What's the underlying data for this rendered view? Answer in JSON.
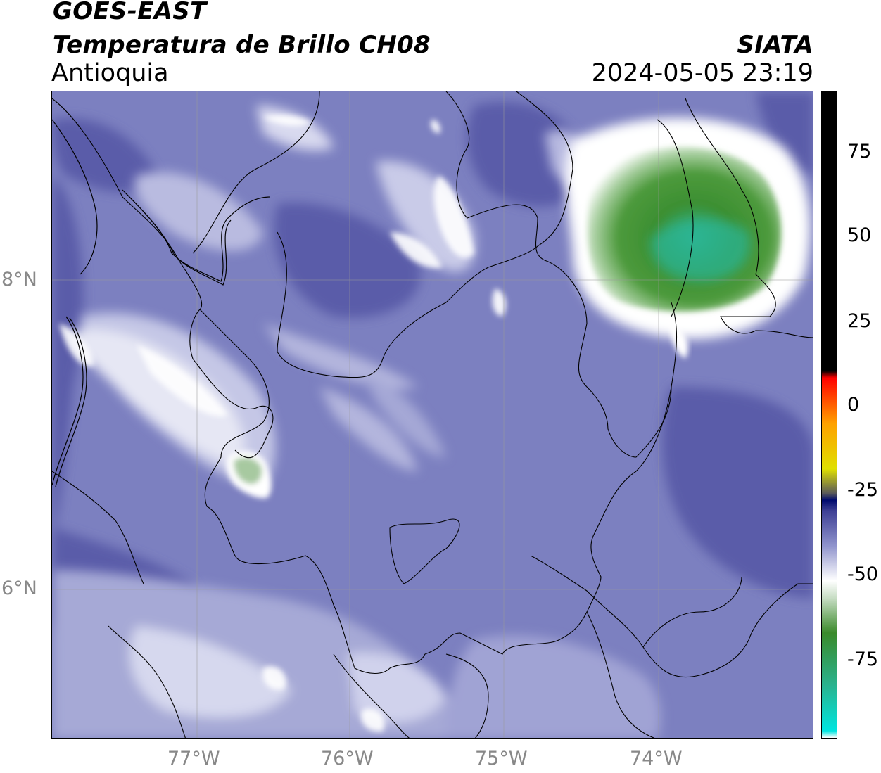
{
  "header": {
    "satellite": "GOES-EAST",
    "product": "Temperatura de Brillo CH08",
    "region": "Antioquia",
    "agency": "SIATA",
    "timestamp": "2024-05-05 23:19"
  },
  "map": {
    "lon_ticks": [
      "77°W",
      "76°W",
      "75°W",
      "74°W"
    ],
    "lat_ticks": [
      "8°N",
      "6°N"
    ],
    "lon_range": [
      -77.94,
      -73.03
    ],
    "lat_range": [
      5.0,
      9.2
    ],
    "colormap_stops": [
      {
        "value": -95,
        "color": "#ffffff"
      },
      {
        "value": -93,
        "color": "#00e5e0"
      },
      {
        "value": -80,
        "color": "#2ab38f"
      },
      {
        "value": -65,
        "color": "#3a8a2a"
      },
      {
        "value": -55,
        "color": "#c7ddc4"
      },
      {
        "value": -50,
        "color": "#ffffff"
      },
      {
        "value": -40,
        "color": "#8f93cc"
      },
      {
        "value": -30,
        "color": "#3d3f94"
      },
      {
        "value": -27,
        "color": "#000b6e"
      },
      {
        "value": -25,
        "color": "#5a5a5a"
      },
      {
        "value": -18,
        "color": "#e0e000"
      },
      {
        "value": -5,
        "color": "#ffa000"
      },
      {
        "value": 8,
        "color": "#ff0000"
      },
      {
        "value": 10,
        "color": "#000000"
      },
      {
        "value": 90,
        "color": "#000000"
      }
    ]
  },
  "colorbar": {
    "ticks": [
      "75",
      "50",
      "25",
      "0",
      "-25",
      "-50",
      "-75"
    ],
    "range": [
      -95,
      90
    ]
  }
}
